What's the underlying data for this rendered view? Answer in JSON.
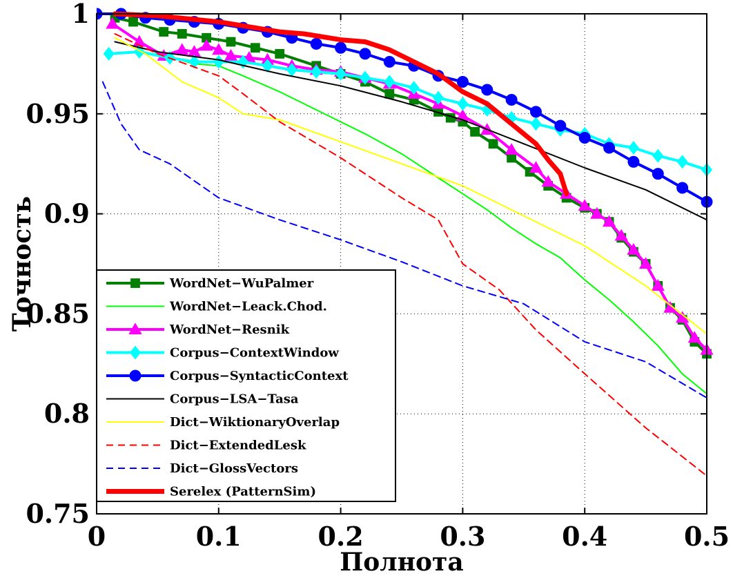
{
  "chart_data": {
    "type": "line",
    "title": "",
    "xlabel": "Полнота",
    "ylabel": "Точность",
    "xlim": [
      0,
      0.5
    ],
    "ylim": [
      0.75,
      1.0
    ],
    "x_ticks": [
      0,
      0.1,
      0.2,
      0.3,
      0.4,
      0.5
    ],
    "x_tick_labels": [
      "0",
      "0.1",
      "0.2",
      "0.3",
      "0.4",
      "0.5"
    ],
    "y_ticks": [
      0.75,
      0.8,
      0.85,
      0.9,
      0.95,
      1.0
    ],
    "y_tick_labels": [
      "0.75",
      "0.8",
      "0.85",
      "0.9",
      "0.95",
      "1"
    ],
    "grid": true,
    "legend_position": "lower-left",
    "series": [
      {
        "name": "WordNet−WuPalmer",
        "color": "#007f00",
        "dash": "solid",
        "marker": "square",
        "points": [
          [
            0.015,
            0.998
          ],
          [
            0.03,
            0.996
          ],
          [
            0.055,
            0.991
          ],
          [
            0.07,
            0.99
          ],
          [
            0.09,
            0.988
          ],
          [
            0.11,
            0.986
          ],
          [
            0.13,
            0.983
          ],
          [
            0.15,
            0.98
          ],
          [
            0.18,
            0.974
          ],
          [
            0.2,
            0.97
          ],
          [
            0.22,
            0.966
          ],
          [
            0.24,
            0.96
          ],
          [
            0.26,
            0.957
          ],
          [
            0.28,
            0.951
          ],
          [
            0.29,
            0.948
          ],
          [
            0.3,
            0.946
          ],
          [
            0.31,
            0.941
          ],
          [
            0.325,
            0.935
          ],
          [
            0.34,
            0.928
          ],
          [
            0.355,
            0.921
          ],
          [
            0.37,
            0.914
          ],
          [
            0.385,
            0.908
          ],
          [
            0.4,
            0.903
          ],
          [
            0.41,
            0.9
          ],
          [
            0.42,
            0.896
          ],
          [
            0.43,
            0.888
          ],
          [
            0.44,
            0.881
          ],
          [
            0.45,
            0.875
          ],
          [
            0.46,
            0.864
          ],
          [
            0.47,
            0.853
          ],
          [
            0.48,
            0.847
          ],
          [
            0.49,
            0.836
          ],
          [
            0.5,
            0.83
          ]
        ]
      },
      {
        "name": "WordNet−Leack.Chod.",
        "color": "#00ff00",
        "dash": "solid",
        "marker": "none",
        "points": [
          [
            0.015,
            0.994
          ],
          [
            0.03,
            0.988
          ],
          [
            0.05,
            0.98
          ],
          [
            0.08,
            0.975
          ],
          [
            0.1,
            0.974
          ],
          [
            0.12,
            0.969
          ],
          [
            0.15,
            0.961
          ],
          [
            0.18,
            0.952
          ],
          [
            0.2,
            0.946
          ],
          [
            0.22,
            0.94
          ],
          [
            0.25,
            0.93
          ],
          [
            0.28,
            0.918
          ],
          [
            0.3,
            0.91
          ],
          [
            0.32,
            0.902
          ],
          [
            0.34,
            0.893
          ],
          [
            0.36,
            0.885
          ],
          [
            0.38,
            0.878
          ],
          [
            0.4,
            0.867
          ],
          [
            0.42,
            0.857
          ],
          [
            0.44,
            0.846
          ],
          [
            0.46,
            0.834
          ],
          [
            0.48,
            0.82
          ],
          [
            0.5,
            0.81
          ]
        ]
      },
      {
        "name": "WordNet−Resnik",
        "color": "#ff00ff",
        "dash": "solid",
        "marker": "triangle",
        "points": [
          [
            0.013,
            0.995
          ],
          [
            0.035,
            0.986
          ],
          [
            0.055,
            0.979
          ],
          [
            0.07,
            0.982
          ],
          [
            0.08,
            0.981
          ],
          [
            0.09,
            0.984
          ],
          [
            0.1,
            0.982
          ],
          [
            0.11,
            0.979
          ],
          [
            0.125,
            0.978
          ],
          [
            0.14,
            0.977
          ],
          [
            0.16,
            0.974
          ],
          [
            0.18,
            0.972
          ],
          [
            0.2,
            0.971
          ],
          [
            0.22,
            0.968
          ],
          [
            0.24,
            0.965
          ],
          [
            0.26,
            0.96
          ],
          [
            0.28,
            0.955
          ],
          [
            0.3,
            0.949
          ],
          [
            0.32,
            0.942
          ],
          [
            0.34,
            0.932
          ],
          [
            0.36,
            0.923
          ],
          [
            0.37,
            0.916
          ],
          [
            0.385,
            0.91
          ],
          [
            0.4,
            0.904
          ],
          [
            0.41,
            0.9
          ],
          [
            0.42,
            0.896
          ],
          [
            0.43,
            0.889
          ],
          [
            0.44,
            0.882
          ],
          [
            0.45,
            0.875
          ],
          [
            0.46,
            0.864
          ],
          [
            0.47,
            0.853
          ],
          [
            0.48,
            0.848
          ],
          [
            0.49,
            0.838
          ],
          [
            0.5,
            0.832
          ]
        ]
      },
      {
        "name": "Corpus−ContextWindow",
        "color": "#00ffff",
        "dash": "solid",
        "marker": "diamond",
        "points": [
          [
            0.01,
            0.98
          ],
          [
            0.035,
            0.981
          ],
          [
            0.06,
            0.978
          ],
          [
            0.08,
            0.976
          ],
          [
            0.1,
            0.976
          ],
          [
            0.12,
            0.976
          ],
          [
            0.14,
            0.974
          ],
          [
            0.16,
            0.972
          ],
          [
            0.18,
            0.971
          ],
          [
            0.2,
            0.97
          ],
          [
            0.22,
            0.968
          ],
          [
            0.24,
            0.966
          ],
          [
            0.26,
            0.963
          ],
          [
            0.28,
            0.958
          ],
          [
            0.3,
            0.955
          ],
          [
            0.32,
            0.952
          ],
          [
            0.34,
            0.948
          ],
          [
            0.36,
            0.945
          ],
          [
            0.38,
            0.942
          ],
          [
            0.4,
            0.94
          ],
          [
            0.42,
            0.935
          ],
          [
            0.44,
            0.933
          ],
          [
            0.46,
            0.929
          ],
          [
            0.48,
            0.926
          ],
          [
            0.5,
            0.922
          ]
        ]
      },
      {
        "name": "Corpus−SyntacticContext",
        "color": "#0000ff",
        "dash": "solid",
        "marker": "circle",
        "points": [
          [
            0.0,
            1.0
          ],
          [
            0.02,
            1.0
          ],
          [
            0.04,
            0.998
          ],
          [
            0.06,
            0.997
          ],
          [
            0.08,
            0.996
          ],
          [
            0.1,
            0.995
          ],
          [
            0.12,
            0.993
          ],
          [
            0.14,
            0.991
          ],
          [
            0.16,
            0.988
          ],
          [
            0.18,
            0.985
          ],
          [
            0.2,
            0.983
          ],
          [
            0.22,
            0.98
          ],
          [
            0.24,
            0.976
          ],
          [
            0.26,
            0.974
          ],
          [
            0.28,
            0.969
          ],
          [
            0.3,
            0.966
          ],
          [
            0.32,
            0.962
          ],
          [
            0.34,
            0.957
          ],
          [
            0.36,
            0.951
          ],
          [
            0.38,
            0.944
          ],
          [
            0.4,
            0.938
          ],
          [
            0.42,
            0.933
          ],
          [
            0.44,
            0.926
          ],
          [
            0.46,
            0.92
          ],
          [
            0.48,
            0.913
          ],
          [
            0.5,
            0.906
          ]
        ]
      },
      {
        "name": "Corpus−LSA−Tasa",
        "color": "#000000",
        "dash": "solid",
        "marker": "none",
        "points": [
          [
            0.015,
            0.986
          ],
          [
            0.05,
            0.981
          ],
          [
            0.1,
            0.977
          ],
          [
            0.15,
            0.97
          ],
          [
            0.2,
            0.964
          ],
          [
            0.25,
            0.956
          ],
          [
            0.3,
            0.947
          ],
          [
            0.35,
            0.935
          ],
          [
            0.4,
            0.923
          ],
          [
            0.45,
            0.912
          ],
          [
            0.5,
            0.897
          ]
        ]
      },
      {
        "name": "Dict−WiktionaryOverlap",
        "color": "#ffff00",
        "dash": "solid",
        "marker": "none",
        "points": [
          [
            0.015,
            0.988
          ],
          [
            0.04,
            0.98
          ],
          [
            0.07,
            0.966
          ],
          [
            0.1,
            0.958
          ],
          [
            0.12,
            0.95
          ],
          [
            0.15,
            0.947
          ],
          [
            0.2,
            0.936
          ],
          [
            0.25,
            0.925
          ],
          [
            0.3,
            0.914
          ],
          [
            0.35,
            0.899
          ],
          [
            0.4,
            0.884
          ],
          [
            0.45,
            0.864
          ],
          [
            0.5,
            0.84
          ]
        ]
      },
      {
        "name": "Dict−ExtendedLesk",
        "color": "#ff0000",
        "dash": "dashed",
        "marker": "none",
        "points": [
          [
            0.015,
            0.99
          ],
          [
            0.05,
            0.98
          ],
          [
            0.1,
            0.969
          ],
          [
            0.12,
            0.96
          ],
          [
            0.15,
            0.946
          ],
          [
            0.2,
            0.928
          ],
          [
            0.25,
            0.908
          ],
          [
            0.28,
            0.897
          ],
          [
            0.3,
            0.875
          ],
          [
            0.33,
            0.862
          ],
          [
            0.36,
            0.842
          ],
          [
            0.4,
            0.82
          ],
          [
            0.45,
            0.793
          ],
          [
            0.5,
            0.769
          ]
        ]
      },
      {
        "name": "Dict−GlossVectors",
        "color": "#0000ff",
        "dash": "dashed",
        "marker": "none",
        "points": [
          [
            0.005,
            0.966
          ],
          [
            0.02,
            0.945
          ],
          [
            0.035,
            0.932
          ],
          [
            0.06,
            0.925
          ],
          [
            0.1,
            0.908
          ],
          [
            0.15,
            0.897
          ],
          [
            0.2,
            0.887
          ],
          [
            0.25,
            0.876
          ],
          [
            0.3,
            0.864
          ],
          [
            0.35,
            0.855
          ],
          [
            0.4,
            0.836
          ],
          [
            0.45,
            0.826
          ],
          [
            0.5,
            0.808
          ]
        ]
      },
      {
        "name": "Serelex (PatternSim)",
        "color": "#ff0000",
        "dash": "solid",
        "marker": "none",
        "points": [
          [
            0.015,
            1.0
          ],
          [
            0.05,
            0.999
          ],
          [
            0.1,
            0.996
          ],
          [
            0.15,
            0.991
          ],
          [
            0.17,
            0.99
          ],
          [
            0.2,
            0.987
          ],
          [
            0.22,
            0.986
          ],
          [
            0.24,
            0.982
          ],
          [
            0.26,
            0.976
          ],
          [
            0.28,
            0.97
          ],
          [
            0.3,
            0.961
          ],
          [
            0.32,
            0.955
          ],
          [
            0.34,
            0.945
          ],
          [
            0.36,
            0.935
          ],
          [
            0.37,
            0.927
          ],
          [
            0.38,
            0.92
          ],
          [
            0.385,
            0.91
          ]
        ]
      }
    ]
  }
}
